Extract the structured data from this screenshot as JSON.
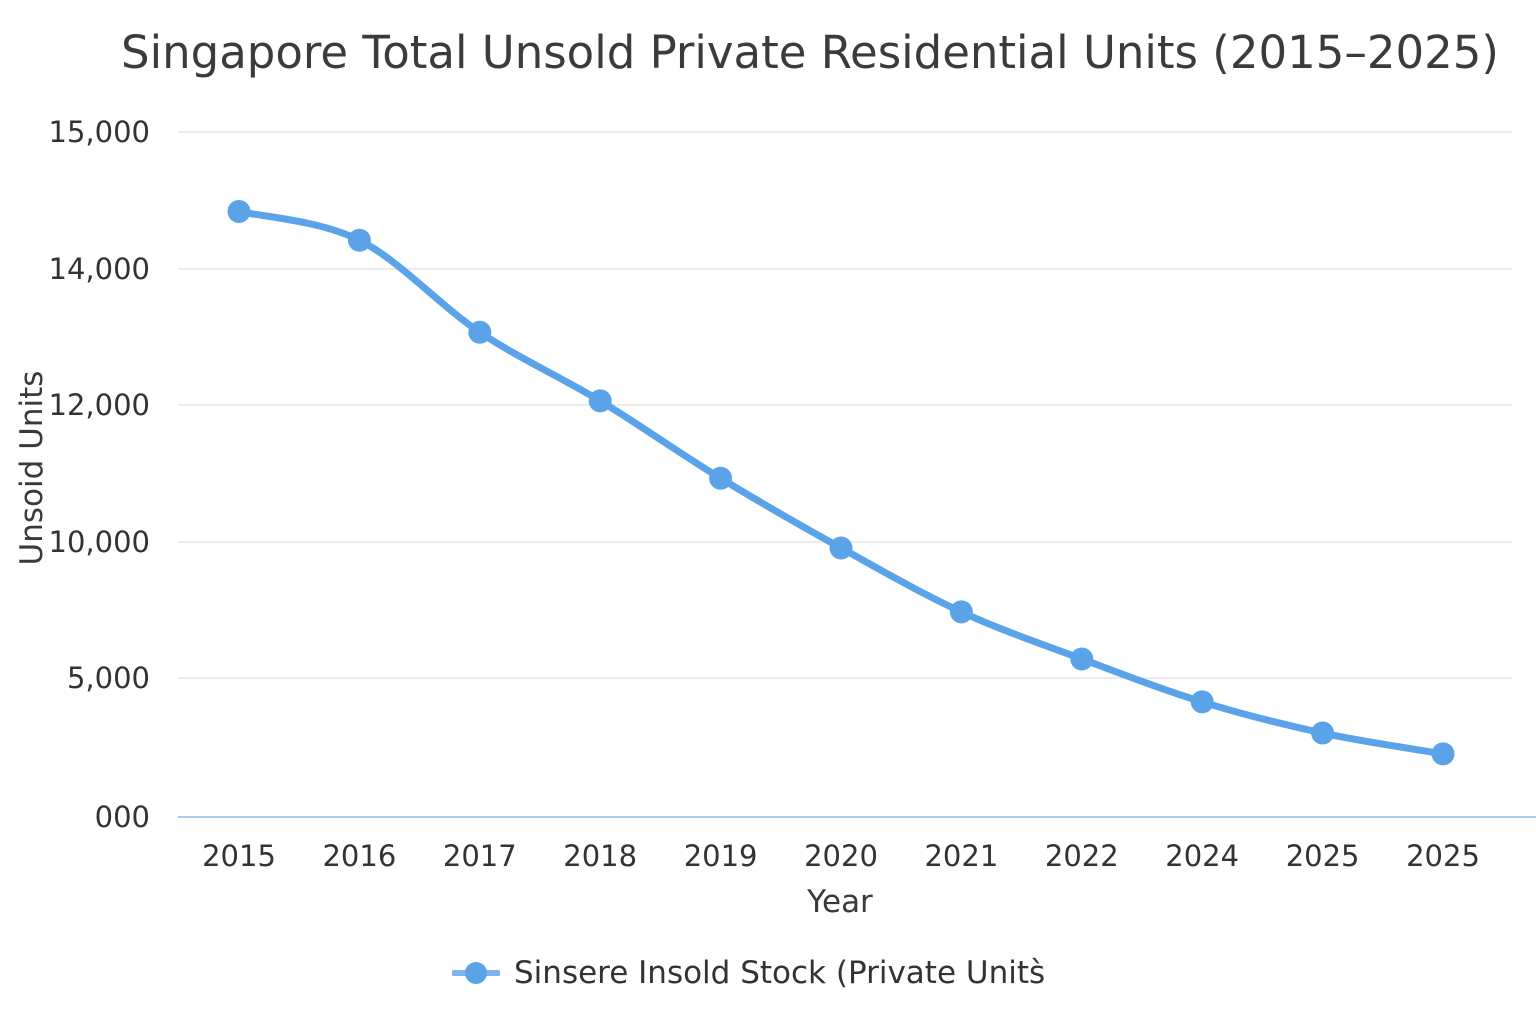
{
  "page": {
    "background": "#ffffff"
  },
  "chart_data": {
    "type": "line",
    "title": "Singapore Total Unsold Private Residential Units (2015–2025)",
    "xlabel": "Year",
    "ylabel": "Unsoid Units",
    "legend_label": "Sinsere Insold Stock (Private Units̀",
    "legend_position": "bottom-center",
    "grid": true,
    "categories": [
      "2015",
      "2016",
      "2017",
      "2018",
      "2019",
      "2020",
      "2021",
      "2022",
      "2024",
      "2025",
      "2025"
    ],
    "y_tick_labels": [
      "000",
      "5,000",
      "10,000",
      "12,000",
      "14,000",
      "15,000"
    ],
    "y_tick_values": [
      0,
      5000,
      10000,
      12000,
      14000,
      15000
    ],
    "ylim": [
      0,
      15000
    ],
    "series": [
      {
        "name": "Sinsere Insold Stock (Private Units̀",
        "values": [
          14420,
          14210,
          13070,
          12060,
          10930,
          9780,
          7430,
          5700,
          4140,
          3020,
          2270
        ],
        "color": "#5BA3E8",
        "marker": "circle",
        "line_shape": "smooth"
      }
    ],
    "colors": {
      "line": "#5BA3E8",
      "legend_line": "#7FB3EC",
      "gridline": "#E6E6E6",
      "zero_axis_line": "#A9CBEC",
      "tick_text": "#333333",
      "title_text": "#3B3B3B"
    }
  }
}
